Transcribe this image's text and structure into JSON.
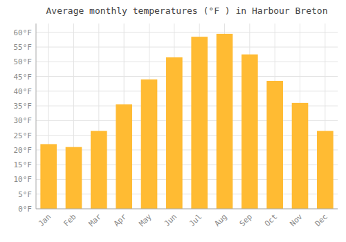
{
  "chart_data": {
    "type": "bar",
    "title": "Average monthly temperatures (°F ) in Harbour Breton",
    "categories": [
      "Jan",
      "Feb",
      "Mar",
      "Apr",
      "May",
      "Jun",
      "Jul",
      "Aug",
      "Sep",
      "Oct",
      "Nov",
      "Dec"
    ],
    "values": [
      22,
      21,
      26.5,
      35.5,
      44,
      51.5,
      58.5,
      59.5,
      52.5,
      43.5,
      36,
      26.5
    ],
    "color": "#FFBB33",
    "ylim": [
      0,
      63
    ],
    "yticks": [
      {
        "value": 0,
        "label": "0°F"
      },
      {
        "value": 5,
        "label": "5°F"
      },
      {
        "value": 10,
        "label": "10°F"
      },
      {
        "value": 15,
        "label": "15°F"
      },
      {
        "value": 20,
        "label": "20°F"
      },
      {
        "value": 25,
        "label": "25°F"
      },
      {
        "value": 30,
        "label": "30°F"
      },
      {
        "value": 35,
        "label": "35°F"
      },
      {
        "value": 40,
        "label": "40°F"
      },
      {
        "value": 45,
        "label": "45°F"
      },
      {
        "value": 50,
        "label": "50°F"
      },
      {
        "value": 55,
        "label": "55°F"
      },
      {
        "value": 60,
        "label": "60°F"
      }
    ],
    "grid": true
  }
}
